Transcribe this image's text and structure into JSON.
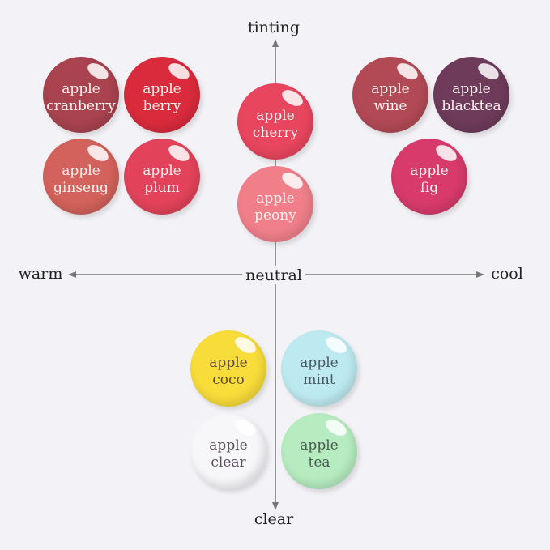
{
  "axes": {
    "top": "tinting",
    "bottom": "clear",
    "left": "warm",
    "right": "cool",
    "center": "neutral"
  },
  "shades": [
    {
      "line1": "apple",
      "line2": "cranberry",
      "color": "#a8434f",
      "text": "#fdf3f0"
    },
    {
      "line1": "apple",
      "line2": "berry",
      "color": "#d92b3c",
      "text": "#fdf3f0"
    },
    {
      "line1": "apple",
      "line2": "ginseng",
      "color": "#d2625b",
      "text": "#fdf3f0"
    },
    {
      "line1": "apple",
      "line2": "plum",
      "color": "#e2435a",
      "text": "#fdf3f0"
    },
    {
      "line1": "apple",
      "line2": "cherry",
      "color": "#e8465f",
      "text": "#fdf3f0"
    },
    {
      "line1": "apple",
      "line2": "peony",
      "color": "#f07f8a",
      "text": "#fdf3f0"
    },
    {
      "line1": "apple",
      "line2": "wine",
      "color": "#b24a56",
      "text": "#fdf3f0"
    },
    {
      "line1": "apple",
      "line2": "blacktea",
      "color": "#6e3b5a",
      "text": "#fdf3f0"
    },
    {
      "line1": "apple",
      "line2": "fig",
      "color": "#d83a6c",
      "text": "#fdf3f0"
    },
    {
      "line1": "apple",
      "line2": "coco",
      "color": "#f8dc3a",
      "text": "#5a4a3a"
    },
    {
      "line1": "apple",
      "line2": "mint",
      "color": "#bdeaf0",
      "text": "#4a5560"
    },
    {
      "line1": "apple",
      "line2": "clear",
      "color": "#f7f7f9",
      "text": "#5a5058"
    },
    {
      "line1": "apple",
      "line2": "tea",
      "color": "#b6ecc0",
      "text": "#4a5a50"
    }
  ]
}
